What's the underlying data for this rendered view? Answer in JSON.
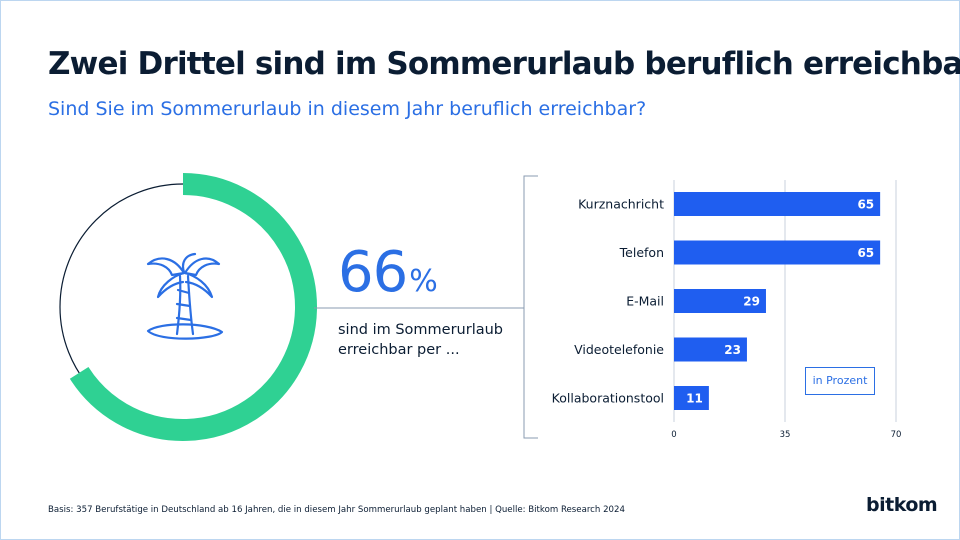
{
  "title": "Zwei Drittel sind im Sommerurlaub beruflich erreichbar",
  "subtitle": "Sind Sie im Sommerurlaub in diesem Jahr beruflich erreichbar?",
  "highlight": {
    "value": 66,
    "value_text": "66",
    "unit": "%",
    "description": "sind im Sommerurlaub erreichbar per ..."
  },
  "icon": "palm-island-icon",
  "legend_label": "in Prozent",
  "footer": "Basis: 357 Berufstätige in Deutschland ab 16 Jahren, die in diesem Jahr Sommerurlaub geplant haben | Quelle: Bitkom Research 2024",
  "logo": "bitkom",
  "colors": {
    "bar": "#1f5ef0",
    "donut": "#2fd193",
    "accent_text": "#2b6fe4",
    "dark_text": "#0b1d33"
  },
  "chart_data": [
    {
      "type": "pie",
      "labels": [
        "erreichbar"
      ],
      "values": [
        66
      ]
    },
    {
      "type": "bar",
      "orientation": "horizontal",
      "categories": [
        "Kurznachricht",
        "Telefon",
        "E-Mail",
        "Videotelefonie",
        "Kollaborationstool"
      ],
      "values": [
        65,
        65,
        29,
        23,
        11
      ],
      "xticks": [
        "0",
        "35",
        "70"
      ],
      "xlim": [
        0,
        70
      ],
      "grid": true,
      "unit_label": "in Prozent"
    }
  ]
}
